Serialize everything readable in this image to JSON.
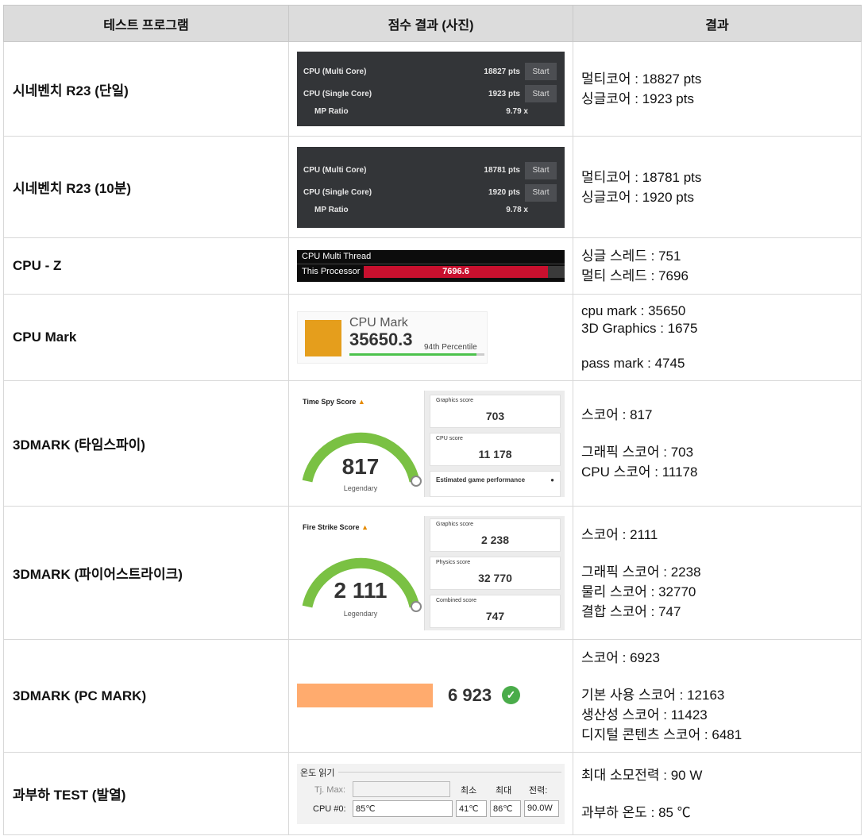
{
  "header": {
    "col1": "테스트 프로그램",
    "col2": "점수 결과 (사진)",
    "col3": "결과"
  },
  "rows": [
    {
      "name": "시네벤치 R23 (단일)",
      "shot": {
        "multi_label": "CPU (Multi Core)",
        "multi_val": "18827 pts",
        "single_label": "CPU (Single Core)",
        "single_val": "1923 pts",
        "start": "Start",
        "mp_label": "MP Ratio",
        "mp_val": "9.79 x"
      },
      "results": [
        "멀티코어 : 18827 pts",
        "싱글코어 : 1923 pts"
      ]
    },
    {
      "name": "시네벤치 R23 (10분)",
      "shot": {
        "multi_label": "CPU (Multi Core)",
        "multi_val": "18781 pts",
        "single_label": "CPU (Single Core)",
        "single_val": "1920 pts",
        "start": "Start",
        "mp_label": "MP Ratio",
        "mp_val": "9.78 x"
      },
      "results": [
        "멀티코어 : 18781 pts",
        "싱글코어 : 1920 pts"
      ]
    },
    {
      "name": "CPU - Z",
      "shot": {
        "title": "CPU Multi Thread",
        "label": "This Processor",
        "value": "7696.6"
      },
      "results": [
        "싱글 스레드 : 751",
        "멀티 스레드 : 7696"
      ]
    },
    {
      "name": "CPU Mark",
      "shot": {
        "title": "CPU Mark",
        "value": "35650.3",
        "percentile": "94th Percentile",
        "percentile_fraction": 0.94
      },
      "results": [
        "cpu mark : 35650",
        "3D Graphics : 1675",
        "",
        "pass mark : 4745"
      ]
    },
    {
      "name": "3DMARK (타임스파이)",
      "shot": {
        "score_label": "Time Spy Score",
        "score": "817",
        "tier": "Legendary",
        "box1_label": "Graphics score",
        "box1_value": "703",
        "box2_label": "CPU score",
        "box2_value": "11 178",
        "egp": "Estimated game performance"
      },
      "results": [
        "스코어 : 817",
        "",
        "그래픽 스코어 : 703",
        "CPU 스코어 : 11178"
      ]
    },
    {
      "name": "3DMARK (파이어스트라이크)",
      "shot": {
        "score_label": "Fire Strike Score",
        "score": "2 111",
        "tier": "Legendary",
        "box1_label": "Graphics score",
        "box1_value": "2 238",
        "box2_label": "Physics score",
        "box2_value": "32 770",
        "box3_label": "Combined score",
        "box3_value": "747"
      },
      "results": [
        "스코어 : 2111",
        "",
        "그래픽 스코어 : 2238",
        "물리 스코어 : 32770",
        "결합 스코어 : 747"
      ]
    },
    {
      "name": "3DMARK (PC MARK)",
      "shot": {
        "score": "6 923",
        "check": "✓"
      },
      "results": [
        "스코어 : 6923",
        "",
        "기본 사용 스코어 : 12163",
        "생산성 스코어 : 11423",
        "디지털 콘텐츠 스코어 : 6481"
      ]
    },
    {
      "name": "과부하 TEST (발열)",
      "shot": {
        "title": "온도 읽기",
        "tj_label": "Tj. Max:",
        "h_min": "최소",
        "h_max": "최대",
        "h_power": "전력:",
        "cpu_label": "CPU #0:",
        "cpu_temp": "85℃",
        "min": "41℃",
        "max": "86℃",
        "power": "90.0W"
      },
      "results": [
        "최대 소모전력 : 90 W",
        "",
        "과부하 온도 : 85 ℃"
      ]
    }
  ]
}
